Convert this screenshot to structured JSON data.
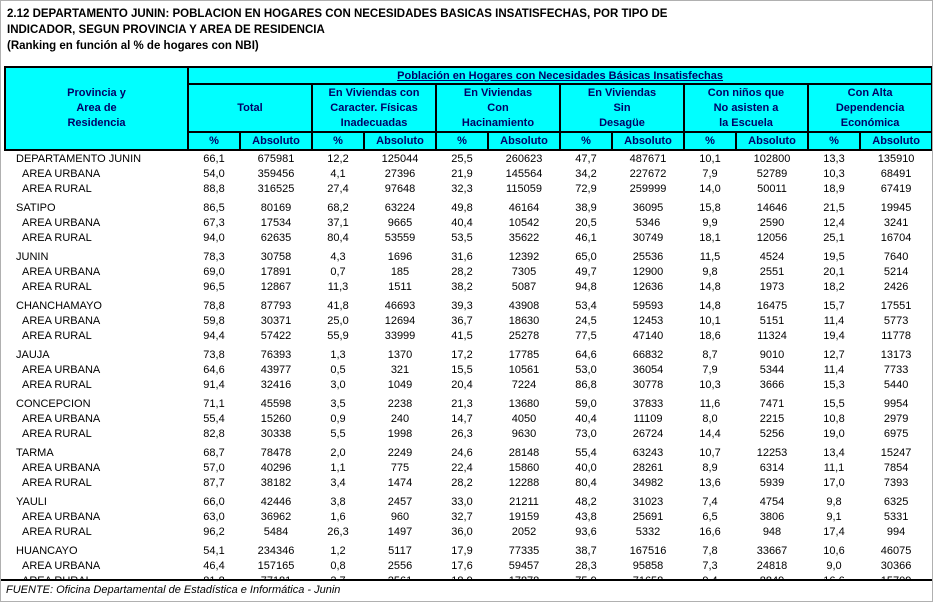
{
  "title": {
    "line1": "2.12  DEPARTAMENTO JUNIN:  POBLACION EN HOGARES CON NECESIDADES BASICAS INSATISFECHAS, POR TIPO DE",
    "line2": "INDICADOR, SEGUN PROVINCIA Y AREA DE RESIDENCIA",
    "line3": "(Ranking en función al % de hogares con NBI)"
  },
  "colors": {
    "header_bg": "#00ffff",
    "header_text": "#000066",
    "border": "#000000"
  },
  "table": {
    "span_title": "Población en Hogares con Necesidades Básicas Insatisfechas",
    "row_header": "Provincia  y\nArea de\nResidencia",
    "groups_header": [
      "Total",
      "En Viviendas con\nCaracter. Físicas\nInadecuadas",
      "En Viviendas\nCon\nHacinamiento",
      "En Viviendas\nSin\nDesagüe",
      "Con niños que\nNo asisten a\nla Escuela",
      "Con Alta\nDependencia\nEconómica"
    ],
    "pct_label": "%",
    "abs_label": "Absoluto",
    "groups": [
      {
        "rows": [
          {
            "label": "DEPARTAMENTO JUNIN",
            "indent": false,
            "values": [
              "66,1",
              "675981",
              "12,2",
              "125044",
              "25,5",
              "260623",
              "47,7",
              "487671",
              "10,1",
              "102800",
              "13,3",
              "135910"
            ]
          },
          {
            "label": "AREA URBANA",
            "indent": true,
            "values": [
              "54,0",
              "359456",
              "4,1",
              "27396",
              "21,9",
              "145564",
              "34,2",
              "227672",
              "7,9",
              "52789",
              "10,3",
              "68491"
            ]
          },
          {
            "label": "AREA RURAL",
            "indent": true,
            "values": [
              "88,8",
              "316525",
              "27,4",
              "97648",
              "32,3",
              "115059",
              "72,9",
              "259999",
              "14,0",
              "50011",
              "18,9",
              "67419"
            ]
          }
        ]
      },
      {
        "rows": [
          {
            "label": "SATIPO",
            "indent": false,
            "values": [
              "86,5",
              "80169",
              "68,2",
              "63224",
              "49,8",
              "46164",
              "38,9",
              "36095",
              "15,8",
              "14646",
              "21,5",
              "19945"
            ]
          },
          {
            "label": "AREA URBANA",
            "indent": true,
            "values": [
              "67,3",
              "17534",
              "37,1",
              "9665",
              "40,4",
              "10542",
              "20,5",
              "5346",
              "9,9",
              "2590",
              "12,4",
              "3241"
            ]
          },
          {
            "label": "AREA RURAL",
            "indent": true,
            "values": [
              "94,0",
              "62635",
              "80,4",
              "53559",
              "53,5",
              "35622",
              "46,1",
              "30749",
              "18,1",
              "12056",
              "25,1",
              "16704"
            ]
          }
        ]
      },
      {
        "rows": [
          {
            "label": "JUNIN",
            "indent": false,
            "values": [
              "78,3",
              "30758",
              "4,3",
              "1696",
              "31,6",
              "12392",
              "65,0",
              "25536",
              "11,5",
              "4524",
              "19,5",
              "7640"
            ]
          },
          {
            "label": "AREA URBANA",
            "indent": true,
            "values": [
              "69,0",
              "17891",
              "0,7",
              "185",
              "28,2",
              "7305",
              "49,7",
              "12900",
              "9,8",
              "2551",
              "20,1",
              "5214"
            ]
          },
          {
            "label": "AREA RURAL",
            "indent": true,
            "values": [
              "96,5",
              "12867",
              "11,3",
              "1511",
              "38,2",
              "5087",
              "94,8",
              "12636",
              "14,8",
              "1973",
              "18,2",
              "2426"
            ]
          }
        ]
      },
      {
        "rows": [
          {
            "label": "CHANCHAMAYO",
            "indent": false,
            "values": [
              "78,8",
              "87793",
              "41,8",
              "46693",
              "39,3",
              "43908",
              "53,4",
              "59593",
              "14,8",
              "16475",
              "15,7",
              "17551"
            ]
          },
          {
            "label": "AREA URBANA",
            "indent": true,
            "values": [
              "59,8",
              "30371",
              "25,0",
              "12694",
              "36,7",
              "18630",
              "24,5",
              "12453",
              "10,1",
              "5151",
              "11,4",
              "5773"
            ]
          },
          {
            "label": "AREA RURAL",
            "indent": true,
            "values": [
              "94,4",
              "57422",
              "55,9",
              "33999",
              "41,5",
              "25278",
              "77,5",
              "47140",
              "18,6",
              "11324",
              "19,4",
              "11778"
            ]
          }
        ]
      },
      {
        "rows": [
          {
            "label": "JAUJA",
            "indent": false,
            "values": [
              "73,8",
              "76393",
              "1,3",
              "1370",
              "17,2",
              "17785",
              "64,6",
              "66832",
              "8,7",
              "9010",
              "12,7",
              "13173"
            ]
          },
          {
            "label": "AREA URBANA",
            "indent": true,
            "values": [
              "64,6",
              "43977",
              "0,5",
              "321",
              "15,5",
              "10561",
              "53,0",
              "36054",
              "7,9",
              "5344",
              "11,4",
              "7733"
            ]
          },
          {
            "label": "AREA RURAL",
            "indent": true,
            "values": [
              "91,4",
              "32416",
              "3,0",
              "1049",
              "20,4",
              "7224",
              "86,8",
              "30778",
              "10,3",
              "3666",
              "15,3",
              "5440"
            ]
          }
        ]
      },
      {
        "rows": [
          {
            "label": "CONCEPCION",
            "indent": false,
            "values": [
              "71,1",
              "45598",
              "3,5",
              "2238",
              "21,3",
              "13680",
              "59,0",
              "37833",
              "11,6",
              "7471",
              "15,5",
              "9954"
            ]
          },
          {
            "label": "AREA URBANA",
            "indent": true,
            "values": [
              "55,4",
              "15260",
              "0,9",
              "240",
              "14,7",
              "4050",
              "40,4",
              "11109",
              "8,0",
              "2215",
              "10,8",
              "2979"
            ]
          },
          {
            "label": "AREA RURAL",
            "indent": true,
            "values": [
              "82,8",
              "30338",
              "5,5",
              "1998",
              "26,3",
              "9630",
              "73,0",
              "26724",
              "14,4",
              "5256",
              "19,0",
              "6975"
            ]
          }
        ]
      },
      {
        "rows": [
          {
            "label": "TARMA",
            "indent": false,
            "values": [
              "68,7",
              "78478",
              "2,0",
              "2249",
              "24,6",
              "28148",
              "55,4",
              "63243",
              "10,7",
              "12253",
              "13,4",
              "15247"
            ]
          },
          {
            "label": "AREA URBANA",
            "indent": true,
            "values": [
              "57,0",
              "40296",
              "1,1",
              "775",
              "22,4",
              "15860",
              "40,0",
              "28261",
              "8,9",
              "6314",
              "11,1",
              "7854"
            ]
          },
          {
            "label": "AREA RURAL",
            "indent": true,
            "values": [
              "87,7",
              "38182",
              "3,4",
              "1474",
              "28,2",
              "12288",
              "80,4",
              "34982",
              "13,6",
              "5939",
              "17,0",
              "7393"
            ]
          }
        ]
      },
      {
        "rows": [
          {
            "label": "YAULI",
            "indent": false,
            "values": [
              "66,0",
              "42446",
              "3,8",
              "2457",
              "33,0",
              "21211",
              "48,2",
              "31023",
              "7,4",
              "4754",
              "9,8",
              "6325"
            ]
          },
          {
            "label": "AREA URBANA",
            "indent": true,
            "values": [
              "63,0",
              "36962",
              "1,6",
              "960",
              "32,7",
              "19159",
              "43,8",
              "25691",
              "6,5",
              "3806",
              "9,1",
              "5331"
            ]
          },
          {
            "label": "AREA RURAL",
            "indent": true,
            "values": [
              "96,2",
              "5484",
              "26,3",
              "1497",
              "36,0",
              "2052",
              "93,6",
              "5332",
              "16,6",
              "948",
              "17,4",
              "994"
            ]
          }
        ]
      },
      {
        "rows": [
          {
            "label": "HUANCAYO",
            "indent": false,
            "values": [
              "54,1",
              "234346",
              "1,2",
              "5117",
              "17,9",
              "77335",
              "38,7",
              "167516",
              "7,8",
              "33667",
              "10,6",
              "46075"
            ]
          },
          {
            "label": "AREA URBANA",
            "indent": true,
            "values": [
              "46,4",
              "157165",
              "0,8",
              "2556",
              "17,6",
              "59457",
              "28,3",
              "95858",
              "7,3",
              "24818",
              "9,0",
              "30366"
            ]
          },
          {
            "label": "AREA RURAL",
            "indent": true,
            "values": [
              "81,8",
              "77181",
              "2,7",
              "2561",
              "18,9",
              "17878",
              "75,9",
              "71658",
              "9,4",
              "8849",
              "16,6",
              "15709"
            ]
          }
        ]
      }
    ]
  },
  "footer": {
    "source": "FUENTE: Oficina Departamental de Estadística e Informática - Junin"
  }
}
